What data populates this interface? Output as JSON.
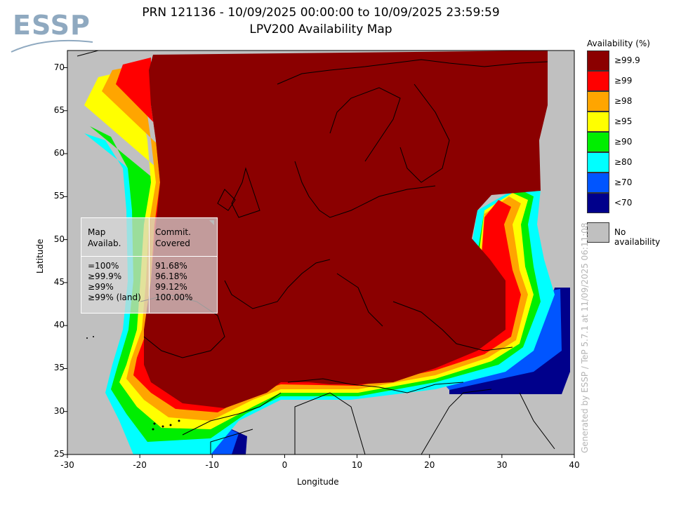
{
  "logo": {
    "text": "ESSP"
  },
  "title": {
    "line1": "PRN 121136 - 10/09/2025 00:00:00 to 10/09/2025 23:59:59",
    "line2": "LPV200 Availability Map"
  },
  "axes": {
    "xlabel": "Longitude",
    "ylabel": "Latitude",
    "x_ticks": [
      "-30",
      "-20",
      "-10",
      "0",
      "10",
      "20",
      "30",
      "40"
    ],
    "y_ticks": [
      "25",
      "30",
      "35",
      "40",
      "45",
      "50",
      "55",
      "60",
      "65",
      "70"
    ]
  },
  "legend": {
    "title": "Availability (%)",
    "items": [
      {
        "label": "≥99.9",
        "color": "#8b0000"
      },
      {
        "label": "≥99",
        "color": "#ff0000"
      },
      {
        "label": "≥98",
        "color": "#ffa500"
      },
      {
        "label": "≥95",
        "color": "#ffff00"
      },
      {
        "label": "≥90",
        "color": "#00ee00"
      },
      {
        "label": "≥80",
        "color": "#00ffff"
      },
      {
        "label": "≥70",
        "color": "#0055ff"
      },
      {
        "label": "<70",
        "color": "#00008b"
      }
    ],
    "no_avail": {
      "label": "No availability",
      "color": "#c0c0c0"
    }
  },
  "stats": {
    "col1_header": [
      "Map",
      "Availab."
    ],
    "col2_header": [
      "Commit.",
      "Covered"
    ],
    "rows": [
      {
        "map": "=100%",
        "covered": "91.68%"
      },
      {
        "map": "≥99.9%",
        "covered": "96.18%"
      },
      {
        "map": "≥99%",
        "covered": "99.12%"
      },
      {
        "map": "≥99% (land)",
        "covered": "100.00%"
      }
    ]
  },
  "credit": "Generated by ESSP / TeP 5.7.1 at 11/09/2025 06:11:08",
  "chart_data": {
    "type": "heatmap",
    "title": "LPV200 Availability Map",
    "xlabel": "Longitude",
    "ylabel": "Latitude",
    "xlim": [
      -30,
      40
    ],
    "ylim": [
      25,
      72
    ]
  }
}
